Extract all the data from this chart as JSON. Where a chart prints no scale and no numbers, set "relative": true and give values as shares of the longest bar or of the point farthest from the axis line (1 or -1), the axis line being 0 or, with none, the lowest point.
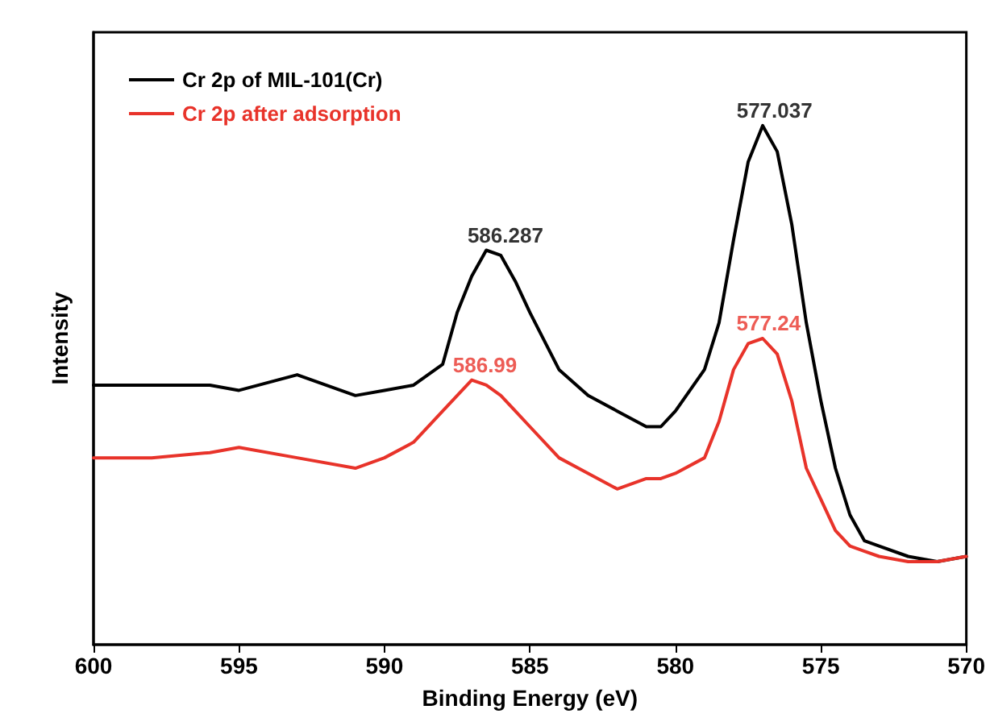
{
  "chart_data": {
    "type": "line",
    "xlabel": "Binding Energy (eV)",
    "ylabel": "Intensity",
    "relative": true,
    "xlim": [
      600,
      570
    ],
    "xticks": [
      600,
      595,
      590,
      585,
      580,
      575,
      570
    ],
    "tick_labels": "x",
    "grid": false,
    "legend": "top left",
    "marker": "none",
    "line_style": "solid",
    "x": [
      600,
      598,
      596,
      595,
      593,
      591,
      590,
      589,
      588,
      587.5,
      587,
      586.5,
      586,
      585.5,
      585,
      584,
      583,
      582,
      581,
      580.5,
      580,
      579,
      578.5,
      578,
      577.5,
      577,
      576.5,
      576,
      575.5,
      575,
      574.5,
      574,
      573.5,
      573,
      572,
      571,
      570
    ],
    "series": [
      {
        "name": "Cr 2p of MIL-101(Cr)",
        "color": "#000000",
        "values": [
          0.5,
          0.5,
          0.5,
          0.49,
          0.52,
          0.48,
          0.49,
          0.5,
          0.54,
          0.64,
          0.71,
          0.76,
          0.75,
          0.7,
          0.64,
          0.53,
          0.48,
          0.45,
          0.42,
          0.42,
          0.45,
          0.53,
          0.62,
          0.78,
          0.93,
          1.0,
          0.95,
          0.81,
          0.62,
          0.47,
          0.34,
          0.25,
          0.2,
          0.19,
          0.17,
          0.16,
          0.17
        ]
      },
      {
        "name": "Cr 2p after adsorption",
        "color": "#e8332a",
        "values": [
          0.36,
          0.36,
          0.37,
          0.38,
          0.36,
          0.34,
          0.36,
          0.39,
          0.45,
          0.48,
          0.51,
          0.5,
          0.48,
          0.45,
          0.42,
          0.36,
          0.33,
          0.3,
          0.32,
          0.32,
          0.33,
          0.36,
          0.43,
          0.53,
          0.58,
          0.59,
          0.56,
          0.47,
          0.34,
          0.28,
          0.22,
          0.19,
          0.18,
          0.17,
          0.16,
          0.16,
          0.17
        ]
      }
    ],
    "annotations": [
      {
        "text": "586.287",
        "x": 586.287,
        "y": 0.76
      },
      {
        "text": "577.037",
        "x": 577.037,
        "y": 1.0
      },
      {
        "text": "586.99",
        "x": 586.99,
        "y": 0.51
      },
      {
        "text": "577.24",
        "x": 577.24,
        "y": 0.59
      }
    ]
  }
}
